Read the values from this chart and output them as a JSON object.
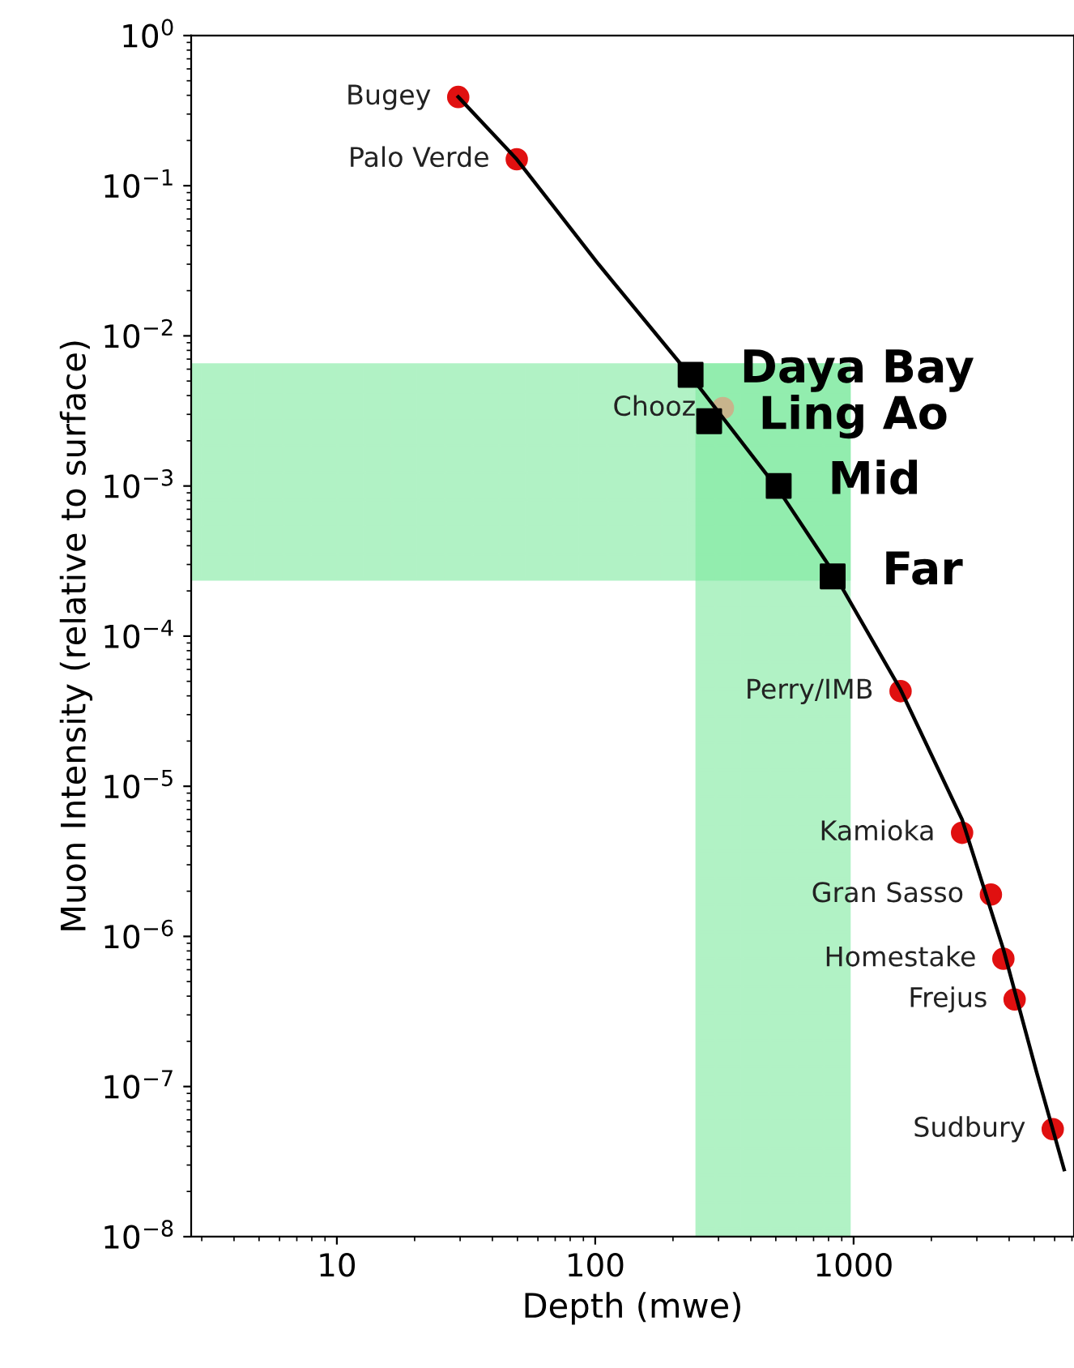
{
  "chart_data": {
    "type": "scatter",
    "xlabel": "Depth (mwe)",
    "ylabel": "Muon Intensity (relative to surface)",
    "log": "xy",
    "xlim": [
      2.73,
      7130
    ],
    "xticks": [
      10,
      100,
      1000
    ],
    "ylim": [
      1e-08,
      1
    ],
    "yticks": [
      {
        "value": 1,
        "label": "10$^{0}$"
      },
      {
        "value": 0.1,
        "label": "10$^{−1}$"
      },
      {
        "value": 0.01,
        "label": "10$^{−2}$"
      },
      {
        "value": 0.001,
        "label": "10$^{−3}$"
      },
      {
        "value": 0.0001,
        "label": "10$^{−4}$"
      },
      {
        "value": 1e-05,
        "label": "10$^{−5}$"
      },
      {
        "value": 1e-06,
        "label": "10$^{−6}$"
      },
      {
        "value": 1e-07,
        "label": "10$^{−7}$"
      },
      {
        "value": 1e-08,
        "label": "10$^{−8}$"
      }
    ],
    "grid": false,
    "legend": false,
    "bands": [
      {
        "axis": "y",
        "from": 0.00024,
        "to": 0.0064,
        "color": "#7eeaa0"
      },
      {
        "axis": "x",
        "from": 248,
        "to": 960,
        "color": "#7eeaa0"
      }
    ],
    "series": [
      {
        "type": "line",
        "color": "#000000",
        "marker": "none",
        "line_style": "solid",
        "x": [
          29.5,
          49.7,
          103,
          234,
          513,
          830,
          1520,
          2630,
          3800,
          5100,
          6530
        ],
        "values": [
          0.39,
          0.15,
          0.03,
          0.0054,
          0.00094,
          0.00027,
          4.4e-05,
          6e-06,
          8.2e-07,
          1.26e-07,
          2.8e-08
        ]
      },
      {
        "color": "#c8b48c",
        "marker": "circle",
        "x": [
          312
        ],
        "values": [
          0.0033
        ]
      },
      {
        "color": "#e01010",
        "marker": "circle",
        "x": [
          29.5,
          49.7,
          1520,
          2630,
          3400,
          3800,
          4200,
          5900
        ],
        "values": [
          0.39,
          0.15,
          4.3e-05,
          4.9e-06,
          1.9e-06,
          7.1e-07,
          3.8e-07,
          5.2e-08
        ]
      },
      {
        "color": "#000000",
        "marker": "square",
        "x": [
          234,
          276,
          513,
          830
        ],
        "values": [
          0.0055,
          0.0027,
          0.001,
          0.00025
        ]
      }
    ],
    "annotations": [
      {
        "text": "Bugey",
        "x": 29.5,
        "y": 0.39
      },
      {
        "text": "Palo Verde",
        "x": 49.7,
        "y": 0.15
      },
      {
        "text": "Chooz",
        "x": 312,
        "y": 0.0033
      },
      {
        "text": "Perry/IMB",
        "x": 1520,
        "y": 4.3e-05
      },
      {
        "text": "Kamioka",
        "x": 2630,
        "y": 4.9e-06
      },
      {
        "text": "Gran Sasso",
        "x": 3400,
        "y": 1.9e-06
      },
      {
        "text": "Homestake",
        "x": 3800,
        "y": 7.1e-07
      },
      {
        "text": "Frejus",
        "x": 4200,
        "y": 3.8e-07
      },
      {
        "text": "Sudbury",
        "x": 5900,
        "y": 5.2e-08
      },
      {
        "text": "Daya Bay",
        "x": 234,
        "y": 0.0055
      },
      {
        "text": "Ling Ao",
        "x": 276,
        "y": 0.0027
      },
      {
        "text": "Mid",
        "x": 513,
        "y": 0.001
      },
      {
        "text": "Far",
        "x": 830,
        "y": 0.00025
      }
    ]
  }
}
